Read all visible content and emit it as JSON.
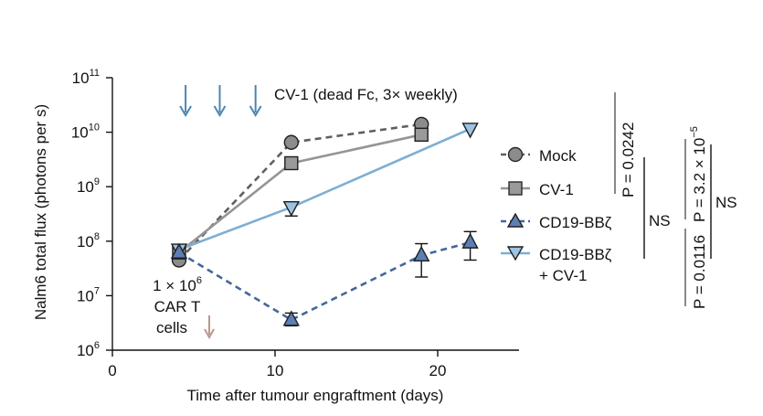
{
  "chart_data": {
    "type": "line",
    "yscale": "log",
    "ylabel": "Nalm6 total flux (photons per s)",
    "xlabel": "Time after tumour engraftment (days)",
    "xlim": [
      0,
      25
    ],
    "ylim_exp": [
      6,
      11
    ],
    "x_ticks": [
      0,
      10,
      20
    ],
    "y_ticks": [
      {
        "exp": 6,
        "base": "10",
        "sup": "6"
      },
      {
        "exp": 7,
        "base": "10",
        "sup": "7"
      },
      {
        "exp": 8,
        "base": "10",
        "sup": "8"
      },
      {
        "exp": 9,
        "base": "10",
        "sup": "9"
      },
      {
        "exp": 10,
        "base": "10",
        "sup": "10"
      },
      {
        "exp": 11,
        "base": "10",
        "sup": "11"
      }
    ],
    "series": [
      {
        "name": "Mock",
        "marker": "circle",
        "color": "#5f5f5f",
        "fill": "#8c8c8c",
        "dashed": true,
        "points": [
          [
            4.1,
            45000000
          ],
          [
            11,
            6500000000
          ],
          [
            19,
            14000000000
          ]
        ],
        "errors": [
          null,
          null,
          null
        ]
      },
      {
        "name": "CV-1",
        "marker": "square",
        "color": "#959595",
        "fill": "#9a9a9a",
        "dashed": false,
        "points": [
          [
            4.1,
            62000000
          ],
          [
            11,
            2700000000
          ],
          [
            19,
            9000000000
          ]
        ],
        "errors": [
          null,
          null,
          null
        ]
      },
      {
        "name": "CD19-BBζ",
        "marker": "triangle-up",
        "color": "#44679a",
        "fill": "#5b7fb5",
        "dashed": true,
        "points": [
          [
            4.1,
            62000000
          ],
          [
            11,
            3600000
          ],
          [
            19,
            55000000
          ],
          [
            22,
            95000000
          ]
        ],
        "errors": [
          null,
          [
            2800000,
            4800000
          ],
          [
            22000000,
            90000000
          ],
          [
            45000000,
            150000000
          ]
        ]
      },
      {
        "name": "CD19-BBζ + CV-1",
        "marker": "triangle-down",
        "color": "#7eaed2",
        "fill": "#9dc3e2",
        "dashed": false,
        "points": [
          [
            4.1,
            70000000
          ],
          [
            11,
            420000000
          ],
          [
            22,
            11500000000
          ]
        ],
        "errors": [
          null,
          [
            290000000,
            520000000
          ],
          null
        ]
      }
    ],
    "dosing_days": [
      4.5,
      6.6,
      8.8
    ],
    "dosing_label": "CV-1 (dead Fc, 3× weekly)",
    "injection_label_line1_prefix": "1 × 10",
    "injection_label_line1_sup": "6",
    "injection_label_line2": "CAR T",
    "injection_label_line3": "cells",
    "legend": {
      "items": [
        {
          "label": "Mock"
        },
        {
          "label": "CV-1"
        },
        {
          "label": "CD19-BBζ"
        },
        {
          "label_line1": "CD19-BBζ",
          "label_line2": "+ CV-1"
        }
      ]
    },
    "stats": {
      "p1_prefix": "P = 0.0242",
      "ns1": "NS",
      "p2_prefix": "P = 0.0116",
      "p3_prefix": "P = 3.2 × 10",
      "p3_sup": "−5",
      "ns2": "NS"
    }
  }
}
